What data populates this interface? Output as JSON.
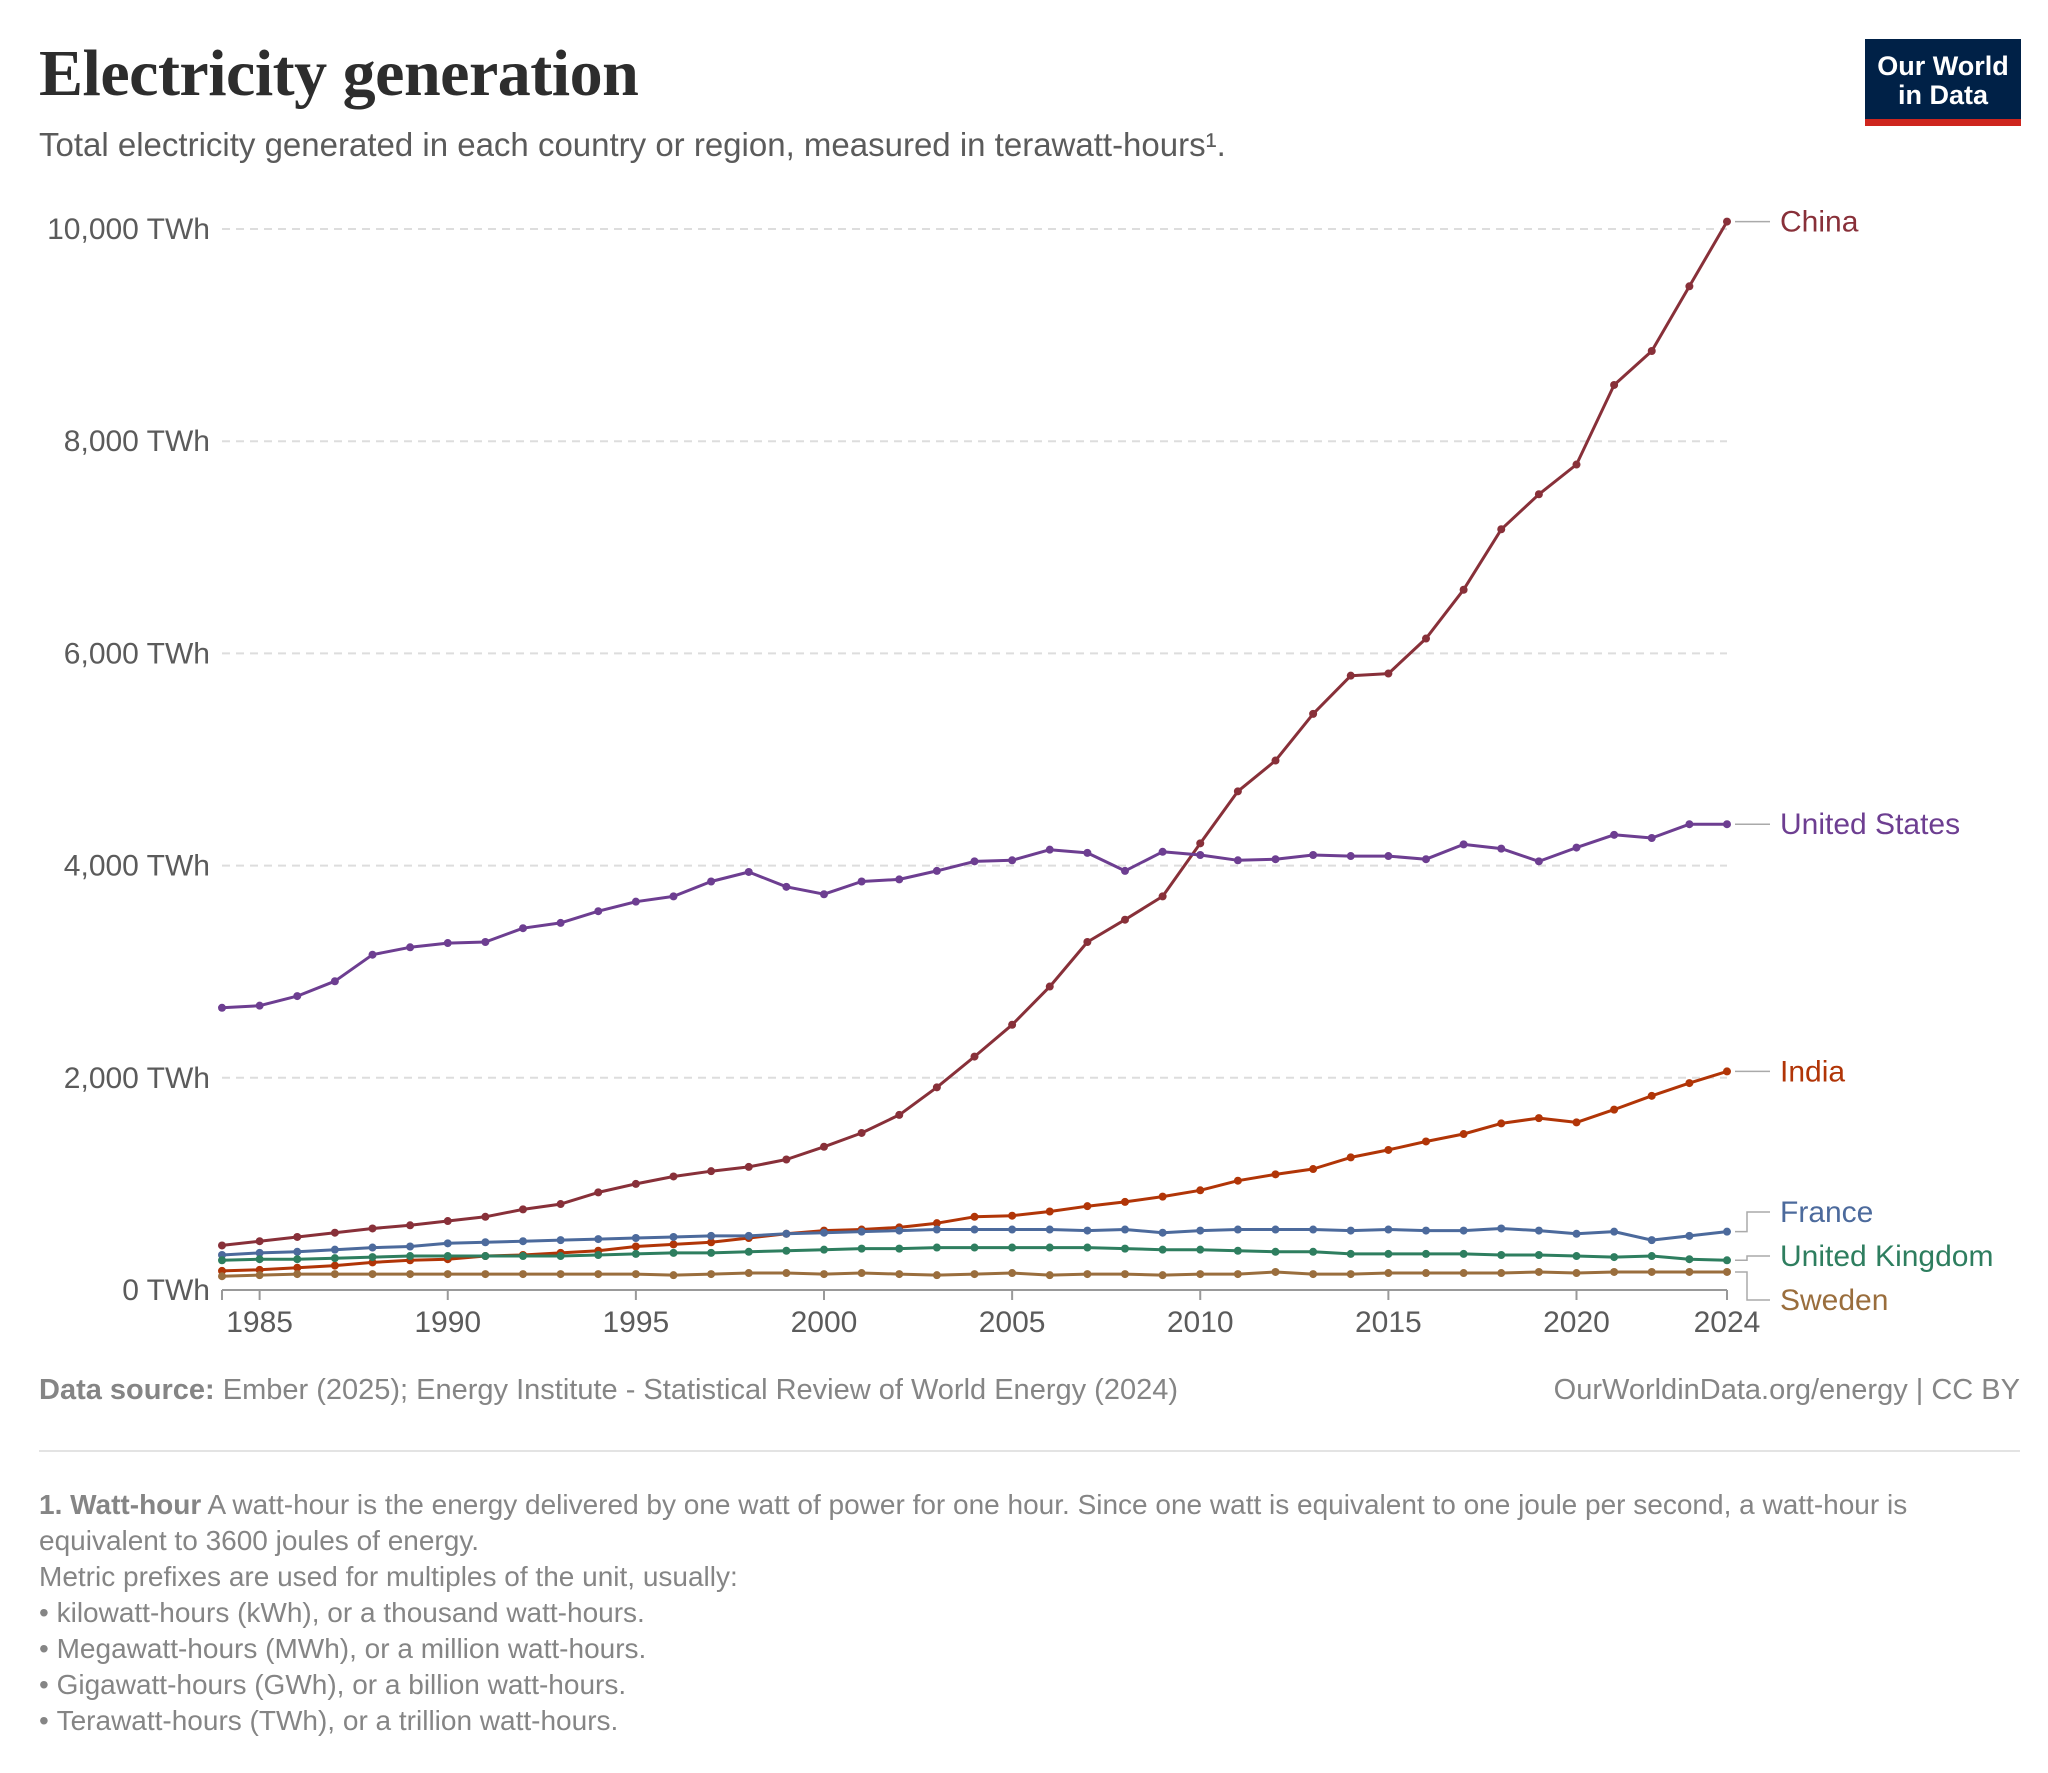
{
  "header": {
    "title": "Electricity generation",
    "subtitle": "Total electricity generated in each country or region, measured in terawatt-hours¹."
  },
  "logo": {
    "line1": "Our World",
    "line2": "in Data",
    "bg_color": "#002147",
    "accent_color": "#ce261e"
  },
  "footer": {
    "source_label": "Data source:",
    "source_text": " Ember (2025); Energy Institute - Statistical Review of World Energy (2024)",
    "credit": "OurWorldinData.org/energy | CC BY"
  },
  "footnote": {
    "term": "1. Watt-hour",
    "definition": " A watt-hour is the energy delivered by one watt of power for one hour. Since one watt is equivalent to one joule per second, a watt-hour is equivalent to 3600 joules of energy.",
    "prefix_intro": "Metric prefixes are used for multiples of the unit, usually:",
    "prefixes": [
      "kilowatt-hours (kWh), or a thousand watt-hours.",
      "Megawatt-hours (MWh), or a million watt-hours.",
      "Gigawatt-hours (GWh), or a billion watt-hours.",
      "Terawatt-hours (TWh), or a trillion watt-hours."
    ]
  },
  "chart_data": {
    "type": "line",
    "x_ticks": [
      1985,
      1990,
      1995,
      2000,
      2005,
      2010,
      2015,
      2020,
      2024
    ],
    "xlim": [
      1984,
      2024
    ],
    "ylim": [
      0,
      10000
    ],
    "y_ticks": [
      0,
      2000,
      4000,
      6000,
      8000,
      10000
    ],
    "y_tick_labels": [
      "0 TWh",
      "2,000 TWh",
      "4,000 TWh",
      "6,000 TWh",
      "8,000 TWh",
      "10,000 TWh"
    ],
    "grid": "horizontal dashed",
    "legend": "end-of-line labels on right",
    "x": [
      1984,
      1985,
      1986,
      1987,
      1988,
      1989,
      1990,
      1991,
      1992,
      1993,
      1994,
      1995,
      1996,
      1997,
      1998,
      1999,
      2000,
      2001,
      2002,
      2003,
      2004,
      2005,
      2006,
      2007,
      2008,
      2009,
      2010,
      2011,
      2012,
      2013,
      2014,
      2015,
      2016,
      2017,
      2018,
      2019,
      2020,
      2021,
      2022,
      2023,
      2024
    ],
    "series": [
      {
        "name": "China",
        "color": "#883039",
        "values": [
          420,
          460,
          500,
          540,
          580,
          610,
          650,
          690,
          760,
          810,
          920,
          1000,
          1070,
          1120,
          1160,
          1230,
          1350,
          1480,
          1650,
          1910,
          2200,
          2500,
          2860,
          3280,
          3490,
          3710,
          4210,
          4700,
          4990,
          5430,
          5790,
          5810,
          6140,
          6600,
          7170,
          7500,
          7780,
          8530,
          8850,
          9460,
          10070
        ]
      },
      {
        "name": "United States",
        "color": "#6d3e91",
        "values": [
          2660,
          2680,
          2770,
          2910,
          3160,
          3230,
          3270,
          3280,
          3410,
          3460,
          3570,
          3660,
          3710,
          3850,
          3940,
          3800,
          3730,
          3850,
          3870,
          3950,
          4040,
          4050,
          4150,
          4120,
          3950,
          4130,
          4100,
          4050,
          4060,
          4100,
          4090,
          4090,
          4060,
          4200,
          4160,
          4040,
          4170,
          4290,
          4260,
          4390,
          4390
        ]
      },
      {
        "name": "India",
        "color": "#b13507",
        "values": [
          180,
          190,
          210,
          230,
          260,
          280,
          290,
          320,
          330,
          350,
          370,
          410,
          430,
          450,
          490,
          530,
          560,
          570,
          590,
          630,
          690,
          700,
          740,
          790,
          830,
          880,
          940,
          1030,
          1090,
          1140,
          1250,
          1320,
          1400,
          1470,
          1570,
          1620,
          1580,
          1700,
          1830,
          1950,
          2060
        ]
      },
      {
        "name": "France",
        "color": "#4c6a9c",
        "values": [
          330,
          350,
          360,
          380,
          400,
          410,
          440,
          450,
          460,
          470,
          480,
          490,
          500,
          510,
          510,
          530,
          540,
          550,
          560,
          570,
          570,
          570,
          570,
          560,
          570,
          540,
          560,
          570,
          570,
          570,
          560,
          570,
          560,
          560,
          580,
          560,
          530,
          550,
          470,
          510,
          550
        ]
      },
      {
        "name": "United Kingdom",
        "color": "#2e7e5f",
        "values": [
          280,
          290,
          290,
          300,
          310,
          320,
          320,
          320,
          320,
          320,
          330,
          340,
          350,
          350,
          360,
          370,
          380,
          390,
          390,
          400,
          400,
          400,
          400,
          400,
          390,
          380,
          380,
          370,
          360,
          360,
          340,
          340,
          340,
          340,
          330,
          330,
          320,
          310,
          320,
          290,
          280
        ]
      },
      {
        "name": "Sweden",
        "color": "#9a6e3d",
        "values": [
          130,
          140,
          150,
          150,
          150,
          150,
          150,
          150,
          150,
          150,
          150,
          150,
          140,
          150,
          160,
          160,
          150,
          160,
          150,
          140,
          150,
          160,
          140,
          150,
          150,
          140,
          150,
          150,
          170,
          150,
          150,
          160,
          160,
          160,
          160,
          170,
          160,
          170,
          170,
          170,
          170
        ]
      }
    ]
  }
}
